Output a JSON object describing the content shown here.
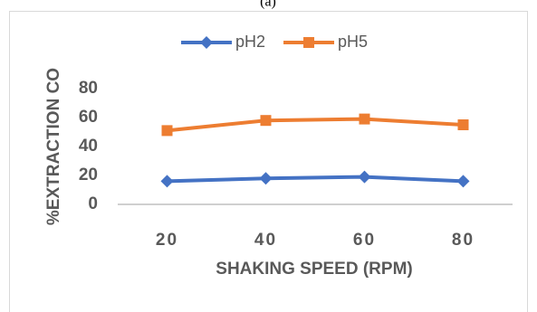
{
  "chart_data": {
    "type": "line",
    "caption": "(a)",
    "categories": [
      "20",
      "40",
      "60",
      "80"
    ],
    "series": [
      {
        "name": "pH2",
        "color": "#4472c4",
        "marker": "diamond",
        "values": [
          16,
          18,
          19,
          16
        ]
      },
      {
        "name": "pH5",
        "color": "#ed7d31",
        "marker": "square",
        "values": [
          51,
          58,
          59,
          55
        ]
      }
    ],
    "ylim": [
      0,
      80
    ],
    "yticks": [
      0,
      20,
      40,
      60,
      80
    ],
    "xlabel": "SHAKING SPEED (RPM)",
    "ylabel": "%EXTRACTION CO",
    "legend": "top",
    "grid": false
  }
}
